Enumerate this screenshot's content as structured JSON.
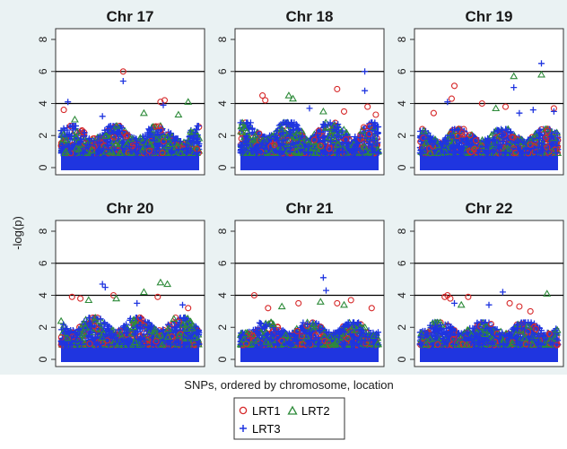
{
  "ylabel": "-log(p)",
  "xlabel": "SNPs, ordered by chromosome, location",
  "legend": [
    "LRT1",
    "LRT2",
    "LRT3"
  ],
  "colors": {
    "background": "#eaf2f3",
    "panel": "#ffffff",
    "lrt1": "#d62728",
    "lrt2": "#2e8b3a",
    "lrt3": "#1f35e0",
    "threshold": "#000000",
    "text": "#1a1a1a"
  },
  "chart_data": [
    {
      "type": "scatter",
      "title": "Chr 17",
      "ylim": [
        0,
        8
      ],
      "yticks": [
        0,
        2,
        4,
        6,
        8
      ],
      "thresholds": [
        4,
        6
      ],
      "bulk_max": 2.6,
      "peaks": [
        {
          "series": "LRT1",
          "x": 0.02,
          "y": 3.6
        },
        {
          "series": "LRT3",
          "x": 0.05,
          "y": 4.1
        },
        {
          "series": "LRT1",
          "x": 0.45,
          "y": 6.0
        },
        {
          "series": "LRT3",
          "x": 0.45,
          "y": 5.4
        },
        {
          "series": "LRT2",
          "x": 0.6,
          "y": 3.4
        },
        {
          "series": "LRT1",
          "x": 0.72,
          "y": 4.1
        },
        {
          "series": "LRT1",
          "x": 0.75,
          "y": 4.2
        },
        {
          "series": "LRT3",
          "x": 0.74,
          "y": 3.9
        },
        {
          "series": "LRT2",
          "x": 0.92,
          "y": 4.1
        },
        {
          "series": "LRT2",
          "x": 0.1,
          "y": 3.0
        },
        {
          "series": "LRT3",
          "x": 0.3,
          "y": 3.2
        },
        {
          "series": "LRT2",
          "x": 0.85,
          "y": 3.3
        }
      ]
    },
    {
      "type": "scatter",
      "title": "Chr 18",
      "ylim": [
        0,
        8
      ],
      "yticks": [
        0,
        2,
        4,
        6,
        8
      ],
      "thresholds": [
        4,
        6
      ],
      "bulk_max": 2.8,
      "peaks": [
        {
          "series": "LRT1",
          "x": 0.16,
          "y": 4.5
        },
        {
          "series": "LRT1",
          "x": 0.18,
          "y": 4.2
        },
        {
          "series": "LRT2",
          "x": 0.35,
          "y": 4.5
        },
        {
          "series": "LRT2",
          "x": 0.38,
          "y": 4.3
        },
        {
          "series": "LRT3",
          "x": 0.5,
          "y": 3.7
        },
        {
          "series": "LRT1",
          "x": 0.7,
          "y": 4.9
        },
        {
          "series": "LRT1",
          "x": 0.75,
          "y": 3.5
        },
        {
          "series": "LRT3",
          "x": 0.9,
          "y": 6.0
        },
        {
          "series": "LRT3",
          "x": 0.9,
          "y": 4.8
        },
        {
          "series": "LRT1",
          "x": 0.92,
          "y": 3.8
        },
        {
          "series": "LRT1",
          "x": 0.98,
          "y": 3.3
        },
        {
          "series": "LRT2",
          "x": 0.6,
          "y": 3.5
        }
      ]
    },
    {
      "type": "scatter",
      "title": "Chr 19",
      "ylim": [
        0,
        8
      ],
      "yticks": [
        0,
        2,
        4,
        6,
        8
      ],
      "thresholds": [
        4,
        6
      ],
      "bulk_max": 2.4,
      "peaks": [
        {
          "series": "LRT1",
          "x": 0.25,
          "y": 5.1
        },
        {
          "series": "LRT3",
          "x": 0.2,
          "y": 4.1
        },
        {
          "series": "LRT1",
          "x": 0.23,
          "y": 4.3
        },
        {
          "series": "LRT1",
          "x": 0.1,
          "y": 3.4
        },
        {
          "series": "LRT1",
          "x": 0.45,
          "y": 4.0
        },
        {
          "series": "LRT2",
          "x": 0.55,
          "y": 3.7
        },
        {
          "series": "LRT2",
          "x": 0.68,
          "y": 5.7
        },
        {
          "series": "LRT3",
          "x": 0.68,
          "y": 5.0
        },
        {
          "series": "LRT1",
          "x": 0.62,
          "y": 3.8
        },
        {
          "series": "LRT3",
          "x": 0.72,
          "y": 3.4
        },
        {
          "series": "LRT3",
          "x": 0.82,
          "y": 3.6
        },
        {
          "series": "LRT3",
          "x": 0.88,
          "y": 6.5
        },
        {
          "series": "LRT2",
          "x": 0.88,
          "y": 5.8
        },
        {
          "series": "LRT1",
          "x": 0.97,
          "y": 3.7
        },
        {
          "series": "LRT3",
          "x": 0.97,
          "y": 3.5
        }
      ]
    },
    {
      "type": "scatter",
      "title": "Chr 20",
      "ylim": [
        0,
        8
      ],
      "yticks": [
        0,
        2,
        4,
        6,
        8
      ],
      "thresholds": [
        4,
        6
      ],
      "bulk_max": 2.6,
      "peaks": [
        {
          "series": "LRT1",
          "x": 0.08,
          "y": 3.9
        },
        {
          "series": "LRT1",
          "x": 0.14,
          "y": 3.8
        },
        {
          "series": "LRT2",
          "x": 0.2,
          "y": 3.7
        },
        {
          "series": "LRT3",
          "x": 0.3,
          "y": 4.7
        },
        {
          "series": "LRT3",
          "x": 0.32,
          "y": 4.5
        },
        {
          "series": "LRT1",
          "x": 0.38,
          "y": 4.0
        },
        {
          "series": "LRT2",
          "x": 0.4,
          "y": 3.8
        },
        {
          "series": "LRT3",
          "x": 0.55,
          "y": 3.5
        },
        {
          "series": "LRT2",
          "x": 0.6,
          "y": 4.2
        },
        {
          "series": "LRT2",
          "x": 0.72,
          "y": 4.8
        },
        {
          "series": "LRT2",
          "x": 0.77,
          "y": 4.7
        },
        {
          "series": "LRT1",
          "x": 0.7,
          "y": 3.9
        },
        {
          "series": "LRT3",
          "x": 0.88,
          "y": 3.4
        },
        {
          "series": "LRT1",
          "x": 0.92,
          "y": 3.2
        }
      ]
    },
    {
      "type": "scatter",
      "title": "Chr 21",
      "ylim": [
        0,
        8
      ],
      "yticks": [
        0,
        2,
        4,
        6,
        8
      ],
      "thresholds": [
        4,
        6
      ],
      "bulk_max": 2.3,
      "peaks": [
        {
          "series": "LRT1",
          "x": 0.1,
          "y": 4.0
        },
        {
          "series": "LRT1",
          "x": 0.2,
          "y": 3.2
        },
        {
          "series": "LRT2",
          "x": 0.3,
          "y": 3.3
        },
        {
          "series": "LRT1",
          "x": 0.42,
          "y": 3.5
        },
        {
          "series": "LRT3",
          "x": 0.6,
          "y": 5.1
        },
        {
          "series": "LRT3",
          "x": 0.62,
          "y": 4.3
        },
        {
          "series": "LRT2",
          "x": 0.58,
          "y": 3.6
        },
        {
          "series": "LRT1",
          "x": 0.7,
          "y": 3.5
        },
        {
          "series": "LRT1",
          "x": 0.8,
          "y": 3.7
        },
        {
          "series": "LRT2",
          "x": 0.75,
          "y": 3.4
        },
        {
          "series": "LRT1",
          "x": 0.95,
          "y": 3.2
        }
      ]
    },
    {
      "type": "scatter",
      "title": "Chr 22",
      "ylim": [
        0,
        8
      ],
      "yticks": [
        0,
        2,
        4,
        6,
        8
      ],
      "thresholds": [
        4,
        6
      ],
      "bulk_max": 2.3,
      "peaks": [
        {
          "series": "LRT1",
          "x": 0.18,
          "y": 3.9
        },
        {
          "series": "LRT1",
          "x": 0.2,
          "y": 4.0
        },
        {
          "series": "LRT1",
          "x": 0.22,
          "y": 3.8
        },
        {
          "series": "LRT3",
          "x": 0.25,
          "y": 3.5
        },
        {
          "series": "LRT1",
          "x": 0.35,
          "y": 3.9
        },
        {
          "series": "LRT2",
          "x": 0.3,
          "y": 3.4
        },
        {
          "series": "LRT3",
          "x": 0.5,
          "y": 3.4
        },
        {
          "series": "LRT3",
          "x": 0.6,
          "y": 4.2
        },
        {
          "series": "LRT1",
          "x": 0.65,
          "y": 3.5
        },
        {
          "series": "LRT1",
          "x": 0.72,
          "y": 3.3
        },
        {
          "series": "LRT2",
          "x": 0.92,
          "y": 4.1
        },
        {
          "series": "LRT1",
          "x": 0.8,
          "y": 3.0
        }
      ]
    }
  ]
}
